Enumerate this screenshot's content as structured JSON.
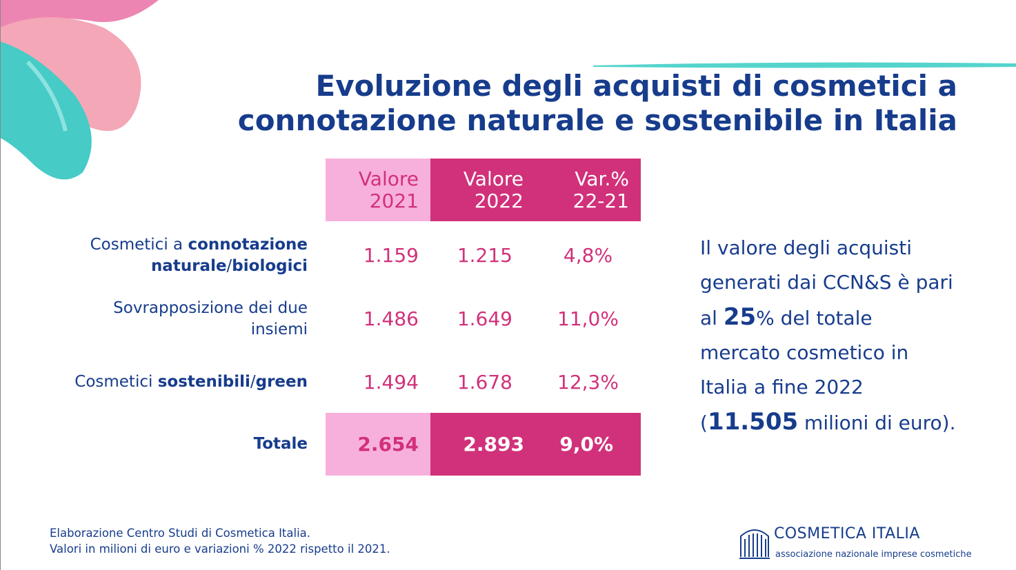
{
  "title": [
    "Evoluzione degli acquisti di cosmetici a",
    "connotazione naturale e sostenibile in Italia"
  ],
  "table": {
    "columns": [
      [
        "Valore",
        "2021"
      ],
      [
        "Valore",
        "2022"
      ],
      [
        "Var.%",
        "22-21"
      ]
    ],
    "rows": [
      {
        "label": [
          [
            {
              "text": "Cosmetici a "
            },
            {
              "text": "connotazione",
              "bold": true
            }
          ],
          [
            {
              "text": "naturale",
              "bold": true
            },
            {
              "text": "/"
            },
            {
              "text": "biologici",
              "bold": true
            }
          ]
        ],
        "cells": [
          "1.159",
          "1.215",
          "4,8%"
        ]
      },
      {
        "label": [
          [
            {
              "text": "Sovrapposizione dei due"
            }
          ],
          [
            {
              "text": "insiemi"
            }
          ]
        ],
        "cells": [
          "1.486",
          "1.649",
          "11,0%"
        ]
      },
      {
        "label": [
          [
            {
              "text": "Cosmetici "
            },
            {
              "text": "sostenibili",
              "bold": true
            },
            {
              "text": "/"
            },
            {
              "text": "green",
              "bold": true
            }
          ]
        ],
        "cells": [
          "1.494",
          "1.678",
          "12,3%"
        ]
      },
      {
        "label": [
          [
            {
              "text": "Totale",
              "bold": true
            }
          ]
        ],
        "cells": [
          "2.654",
          "2.893",
          "9,0%"
        ],
        "total": true
      }
    ]
  },
  "callout": [
    [
      {
        "text": "Il valore degli acquisti"
      }
    ],
    [
      {
        "text": "generati dai CCN&S è pari"
      }
    ],
    [
      {
        "text": "al "
      },
      {
        "text": "25",
        "bold": true
      },
      {
        "text": "% del totale"
      }
    ],
    [
      {
        "text": "mercato cosmetico in"
      }
    ],
    [
      {
        "text": "Italia a fine 2022"
      }
    ],
    [
      {
        "text": "("
      },
      {
        "text": "11.505",
        "bold": true
      },
      {
        "text": " milioni di euro)."
      }
    ]
  ],
  "footer": [
    "Elaborazione Centro Studi di Cosmetica Italia.",
    "Valori in milioni di euro e variazioni % 2022 rispetto il 2021."
  ],
  "logo": {
    "name": "COSMETICA ITALIA",
    "tagline": "associazione nazionale imprese cosmetiche"
  }
}
